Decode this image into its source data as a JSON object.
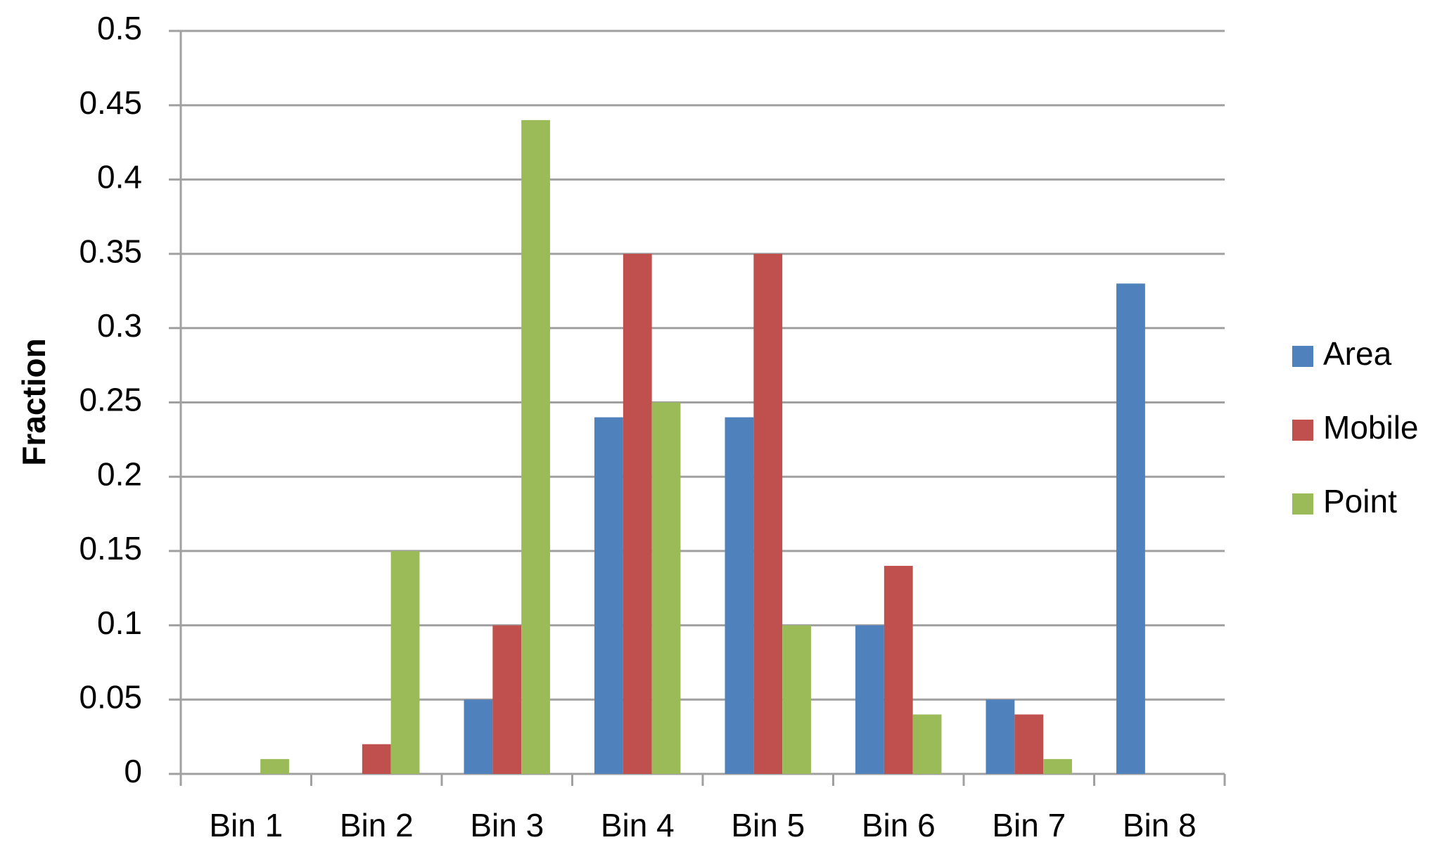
{
  "chart_data": {
    "type": "bar",
    "y_label": "Fraction",
    "categories": [
      "Bin 1",
      "Bin 2",
      "Bin 3",
      "Bin 4",
      "Bin 5",
      "Bin 6",
      "Bin 7",
      "Bin 8"
    ],
    "series": [
      {
        "name": "Area",
        "color": "#4f81bd",
        "values": [
          0,
          0,
          0.05,
          0.24,
          0.24,
          0.1,
          0.05,
          0.33
        ]
      },
      {
        "name": "Mobile",
        "color": "#c0504d",
        "values": [
          0,
          0.02,
          0.1,
          0.35,
          0.35,
          0.14,
          0.04,
          0
        ]
      },
      {
        "name": "Point",
        "color": "#9bbb59",
        "values": [
          0.01,
          0.15,
          0.44,
          0.25,
          0.1,
          0.04,
          0.01,
          0
        ]
      }
    ],
    "ylim": [
      0,
      0.5
    ],
    "yticks": [
      0,
      0.05,
      0.1,
      0.15,
      0.2,
      0.25,
      0.3,
      0.35,
      0.4,
      0.45,
      0.5
    ],
    "grid": true,
    "legend": "right"
  }
}
